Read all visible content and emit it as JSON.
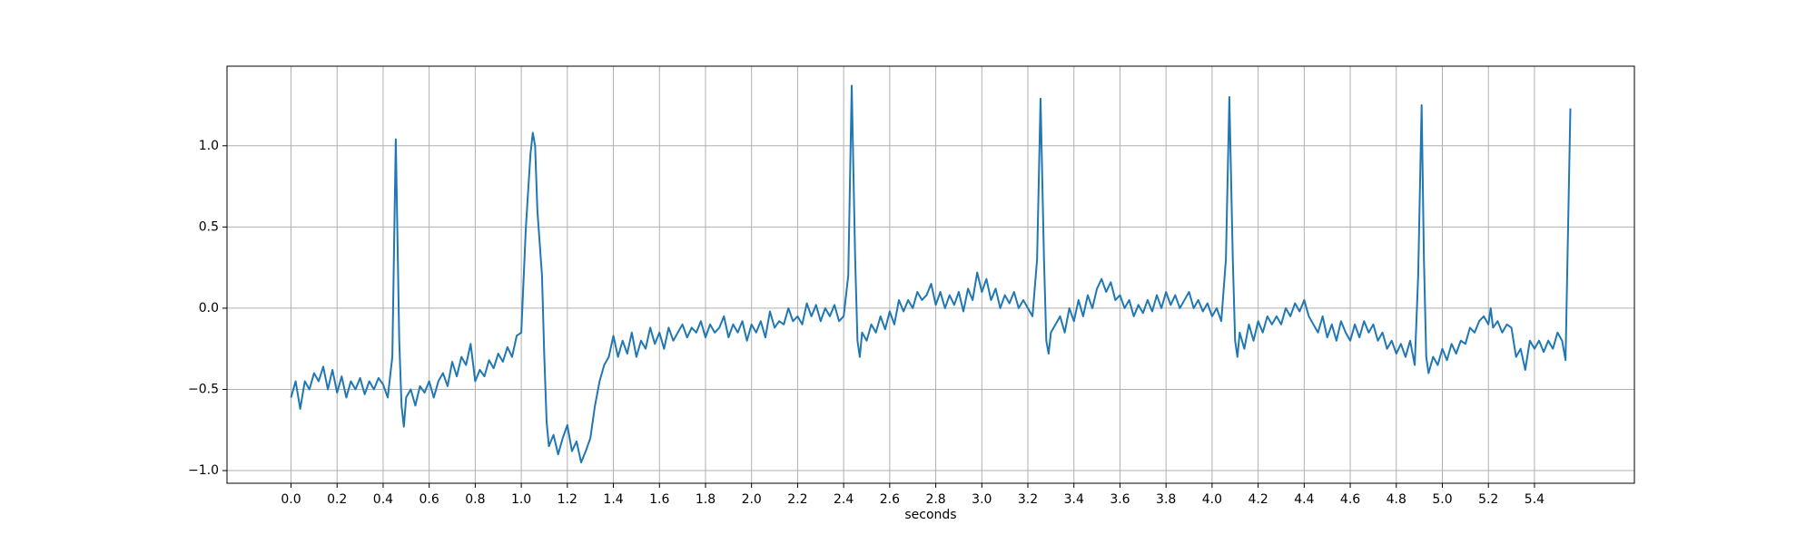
{
  "chart_data": {
    "type": "line",
    "xlabel": "seconds",
    "grid": true,
    "xlim": [
      -0.278,
      5.834
    ],
    "ylim": [
      -1.078,
      1.49
    ],
    "xticks": [
      {
        "value": 0,
        "label": "0.0"
      },
      0.2,
      0.4,
      0.6,
      0.8,
      {
        "value": 1,
        "label": "1.0"
      },
      1.2,
      1.4,
      1.6,
      1.8,
      {
        "value": 2,
        "label": "2.0"
      },
      2.2,
      2.4,
      2.6,
      2.8,
      {
        "value": 3,
        "label": "3.0"
      },
      3.2,
      3.4,
      3.6,
      3.8,
      {
        "value": 4,
        "label": "4.0"
      },
      4.2,
      4.4,
      4.6,
      4.8,
      {
        "value": 5,
        "label": "5.0"
      },
      5.2,
      5.4
    ],
    "yticks": [
      {
        "value": -1,
        "label": "−1.0"
      },
      {
        "value": -0.5,
        "label": "−0.5"
      },
      {
        "value": 0,
        "label": "0.0"
      },
      0.5,
      {
        "value": 1,
        "label": "1.0"
      }
    ],
    "series": [
      {
        "color": "#1f77b4",
        "x": [
          0,
          0.02,
          0.04,
          0.06,
          0.08,
          0.1,
          0.12,
          0.14,
          0.16,
          0.18,
          0.2,
          0.22,
          0.24,
          0.26,
          0.28,
          0.3,
          0.32,
          0.34,
          0.36,
          0.38,
          0.4,
          0.42,
          0.44,
          0.455,
          0.47,
          0.48,
          0.49,
          0.5,
          0.52,
          0.54,
          0.56,
          0.58,
          0.6,
          0.62,
          0.64,
          0.66,
          0.68,
          0.7,
          0.72,
          0.74,
          0.76,
          0.78,
          0.8,
          0.82,
          0.84,
          0.86,
          0.88,
          0.9,
          0.92,
          0.94,
          0.96,
          0.98,
          1.0,
          1.02,
          1.04,
          1.05,
          1.06,
          1.07,
          1.08,
          1.09,
          1.1,
          1.11,
          1.12,
          1.14,
          1.16,
          1.18,
          1.2,
          1.22,
          1.24,
          1.26,
          1.28,
          1.3,
          1.32,
          1.34,
          1.36,
          1.38,
          1.4,
          1.42,
          1.44,
          1.46,
          1.48,
          1.5,
          1.52,
          1.54,
          1.56,
          1.58,
          1.6,
          1.62,
          1.64,
          1.66,
          1.68,
          1.7,
          1.72,
          1.74,
          1.76,
          1.78,
          1.8,
          1.82,
          1.84,
          1.86,
          1.88,
          1.9,
          1.92,
          1.94,
          1.96,
          1.98,
          2.0,
          2.02,
          2.04,
          2.06,
          2.08,
          2.1,
          2.12,
          2.14,
          2.16,
          2.18,
          2.2,
          2.22,
          2.24,
          2.26,
          2.28,
          2.3,
          2.32,
          2.34,
          2.36,
          2.38,
          2.4,
          2.42,
          2.435,
          2.45,
          2.46,
          2.47,
          2.48,
          2.5,
          2.52,
          2.54,
          2.56,
          2.58,
          2.6,
          2.62,
          2.64,
          2.66,
          2.68,
          2.7,
          2.72,
          2.74,
          2.76,
          2.78,
          2.8,
          2.82,
          2.84,
          2.86,
          2.88,
          2.9,
          2.92,
          2.94,
          2.96,
          2.98,
          3.0,
          3.02,
          3.04,
          3.06,
          3.08,
          3.1,
          3.12,
          3.14,
          3.16,
          3.18,
          3.2,
          3.22,
          3.24,
          3.255,
          3.27,
          3.28,
          3.29,
          3.3,
          3.32,
          3.34,
          3.36,
          3.38,
          3.4,
          3.42,
          3.44,
          3.46,
          3.48,
          3.5,
          3.52,
          3.54,
          3.56,
          3.58,
          3.6,
          3.62,
          3.64,
          3.66,
          3.68,
          3.7,
          3.72,
          3.74,
          3.76,
          3.78,
          3.8,
          3.82,
          3.84,
          3.86,
          3.88,
          3.9,
          3.92,
          3.94,
          3.96,
          3.98,
          4.0,
          4.02,
          4.04,
          4.06,
          4.075,
          4.09,
          4.1,
          4.11,
          4.12,
          4.14,
          4.16,
          4.18,
          4.2,
          4.22,
          4.24,
          4.26,
          4.28,
          4.3,
          4.32,
          4.34,
          4.36,
          4.38,
          4.4,
          4.42,
          4.44,
          4.46,
          4.48,
          4.5,
          4.52,
          4.54,
          4.56,
          4.58,
          4.6,
          4.62,
          4.64,
          4.66,
          4.68,
          4.7,
          4.72,
          4.74,
          4.76,
          4.78,
          4.8,
          4.82,
          4.84,
          4.86,
          4.88,
          4.895,
          4.91,
          4.92,
          4.93,
          4.94,
          4.96,
          4.98,
          5.0,
          5.02,
          5.04,
          5.06,
          5.08,
          5.1,
          5.12,
          5.14,
          5.16,
          5.18,
          5.2,
          5.21,
          5.22,
          5.24,
          5.26,
          5.28,
          5.3,
          5.32,
          5.34,
          5.36,
          5.38,
          5.4,
          5.42,
          5.44,
          5.46,
          5.48,
          5.5,
          5.52,
          5.535,
          5.556
        ],
        "values": [
          -0.55,
          -0.45,
          -0.62,
          -0.45,
          -0.5,
          -0.4,
          -0.45,
          -0.36,
          -0.5,
          -0.38,
          -0.52,
          -0.42,
          -0.55,
          -0.45,
          -0.5,
          -0.43,
          -0.53,
          -0.45,
          -0.5,
          -0.43,
          -0.47,
          -0.55,
          -0.3,
          1.04,
          -0.2,
          -0.6,
          -0.73,
          -0.55,
          -0.5,
          -0.6,
          -0.48,
          -0.52,
          -0.45,
          -0.55,
          -0.45,
          -0.4,
          -0.48,
          -0.33,
          -0.42,
          -0.3,
          -0.35,
          -0.22,
          -0.45,
          -0.38,
          -0.42,
          -0.32,
          -0.37,
          -0.28,
          -0.33,
          -0.24,
          -0.3,
          -0.17,
          -0.15,
          0.5,
          0.95,
          1.08,
          1.0,
          0.6,
          0.4,
          0.2,
          -0.3,
          -0.7,
          -0.85,
          -0.78,
          -0.9,
          -0.8,
          -0.72,
          -0.88,
          -0.82,
          -0.95,
          -0.88,
          -0.8,
          -0.6,
          -0.45,
          -0.35,
          -0.3,
          -0.17,
          -0.3,
          -0.2,
          -0.28,
          -0.15,
          -0.3,
          -0.2,
          -0.25,
          -0.12,
          -0.22,
          -0.15,
          -0.25,
          -0.12,
          -0.2,
          -0.15,
          -0.1,
          -0.18,
          -0.12,
          -0.15,
          -0.08,
          -0.18,
          -0.1,
          -0.15,
          -0.12,
          -0.05,
          -0.18,
          -0.1,
          -0.15,
          -0.08,
          -0.2,
          -0.1,
          -0.15,
          -0.08,
          -0.18,
          -0.02,
          -0.12,
          -0.08,
          -0.1,
          0.0,
          -0.08,
          -0.05,
          -0.1,
          0.03,
          -0.05,
          0.02,
          -0.08,
          0.0,
          -0.05,
          0.02,
          -0.08,
          -0.05,
          0.2,
          1.37,
          0.3,
          -0.2,
          -0.3,
          -0.15,
          -0.2,
          -0.1,
          -0.15,
          -0.05,
          -0.13,
          -0.02,
          -0.1,
          0.05,
          -0.02,
          0.05,
          0.0,
          0.1,
          0.05,
          0.08,
          0.15,
          0.02,
          0.1,
          0.0,
          0.08,
          0.02,
          0.1,
          -0.02,
          0.12,
          0.05,
          0.22,
          0.1,
          0.18,
          0.05,
          0.12,
          0.0,
          0.08,
          0.03,
          0.1,
          0.0,
          0.05,
          0.0,
          -0.05,
          0.3,
          1.29,
          0.3,
          -0.2,
          -0.28,
          -0.15,
          -0.1,
          -0.05,
          -0.15,
          0.0,
          -0.08,
          0.05,
          -0.05,
          0.08,
          0.0,
          0.12,
          0.18,
          0.1,
          0.16,
          0.05,
          0.08,
          0.0,
          0.05,
          -0.05,
          0.02,
          -0.03,
          0.05,
          -0.02,
          0.08,
          0.0,
          0.1,
          0.02,
          0.08,
          0.0,
          0.05,
          0.1,
          0.0,
          0.05,
          -0.02,
          0.03,
          -0.05,
          0.0,
          -0.08,
          0.3,
          1.3,
          0.3,
          -0.2,
          -0.3,
          -0.15,
          -0.25,
          -0.1,
          -0.2,
          -0.08,
          -0.15,
          -0.05,
          -0.1,
          -0.05,
          -0.1,
          0.0,
          -0.05,
          0.03,
          -0.02,
          0.05,
          -0.05,
          -0.1,
          -0.15,
          -0.05,
          -0.18,
          -0.1,
          -0.2,
          -0.08,
          -0.15,
          -0.2,
          -0.1,
          -0.18,
          -0.08,
          -0.15,
          -0.1,
          -0.2,
          -0.15,
          -0.25,
          -0.2,
          -0.28,
          -0.22,
          -0.3,
          -0.2,
          -0.35,
          0.2,
          1.25,
          0.3,
          -0.3,
          -0.4,
          -0.3,
          -0.35,
          -0.25,
          -0.32,
          -0.22,
          -0.28,
          -0.2,
          -0.22,
          -0.12,
          -0.15,
          -0.08,
          -0.05,
          -0.1,
          0.0,
          -0.12,
          -0.08,
          -0.15,
          -0.1,
          -0.12,
          -0.3,
          -0.25,
          -0.38,
          -0.2,
          -0.25,
          -0.2,
          -0.27,
          -0.2,
          -0.25,
          -0.15,
          -0.2,
          -0.32,
          1.23
        ]
      }
    ]
  }
}
